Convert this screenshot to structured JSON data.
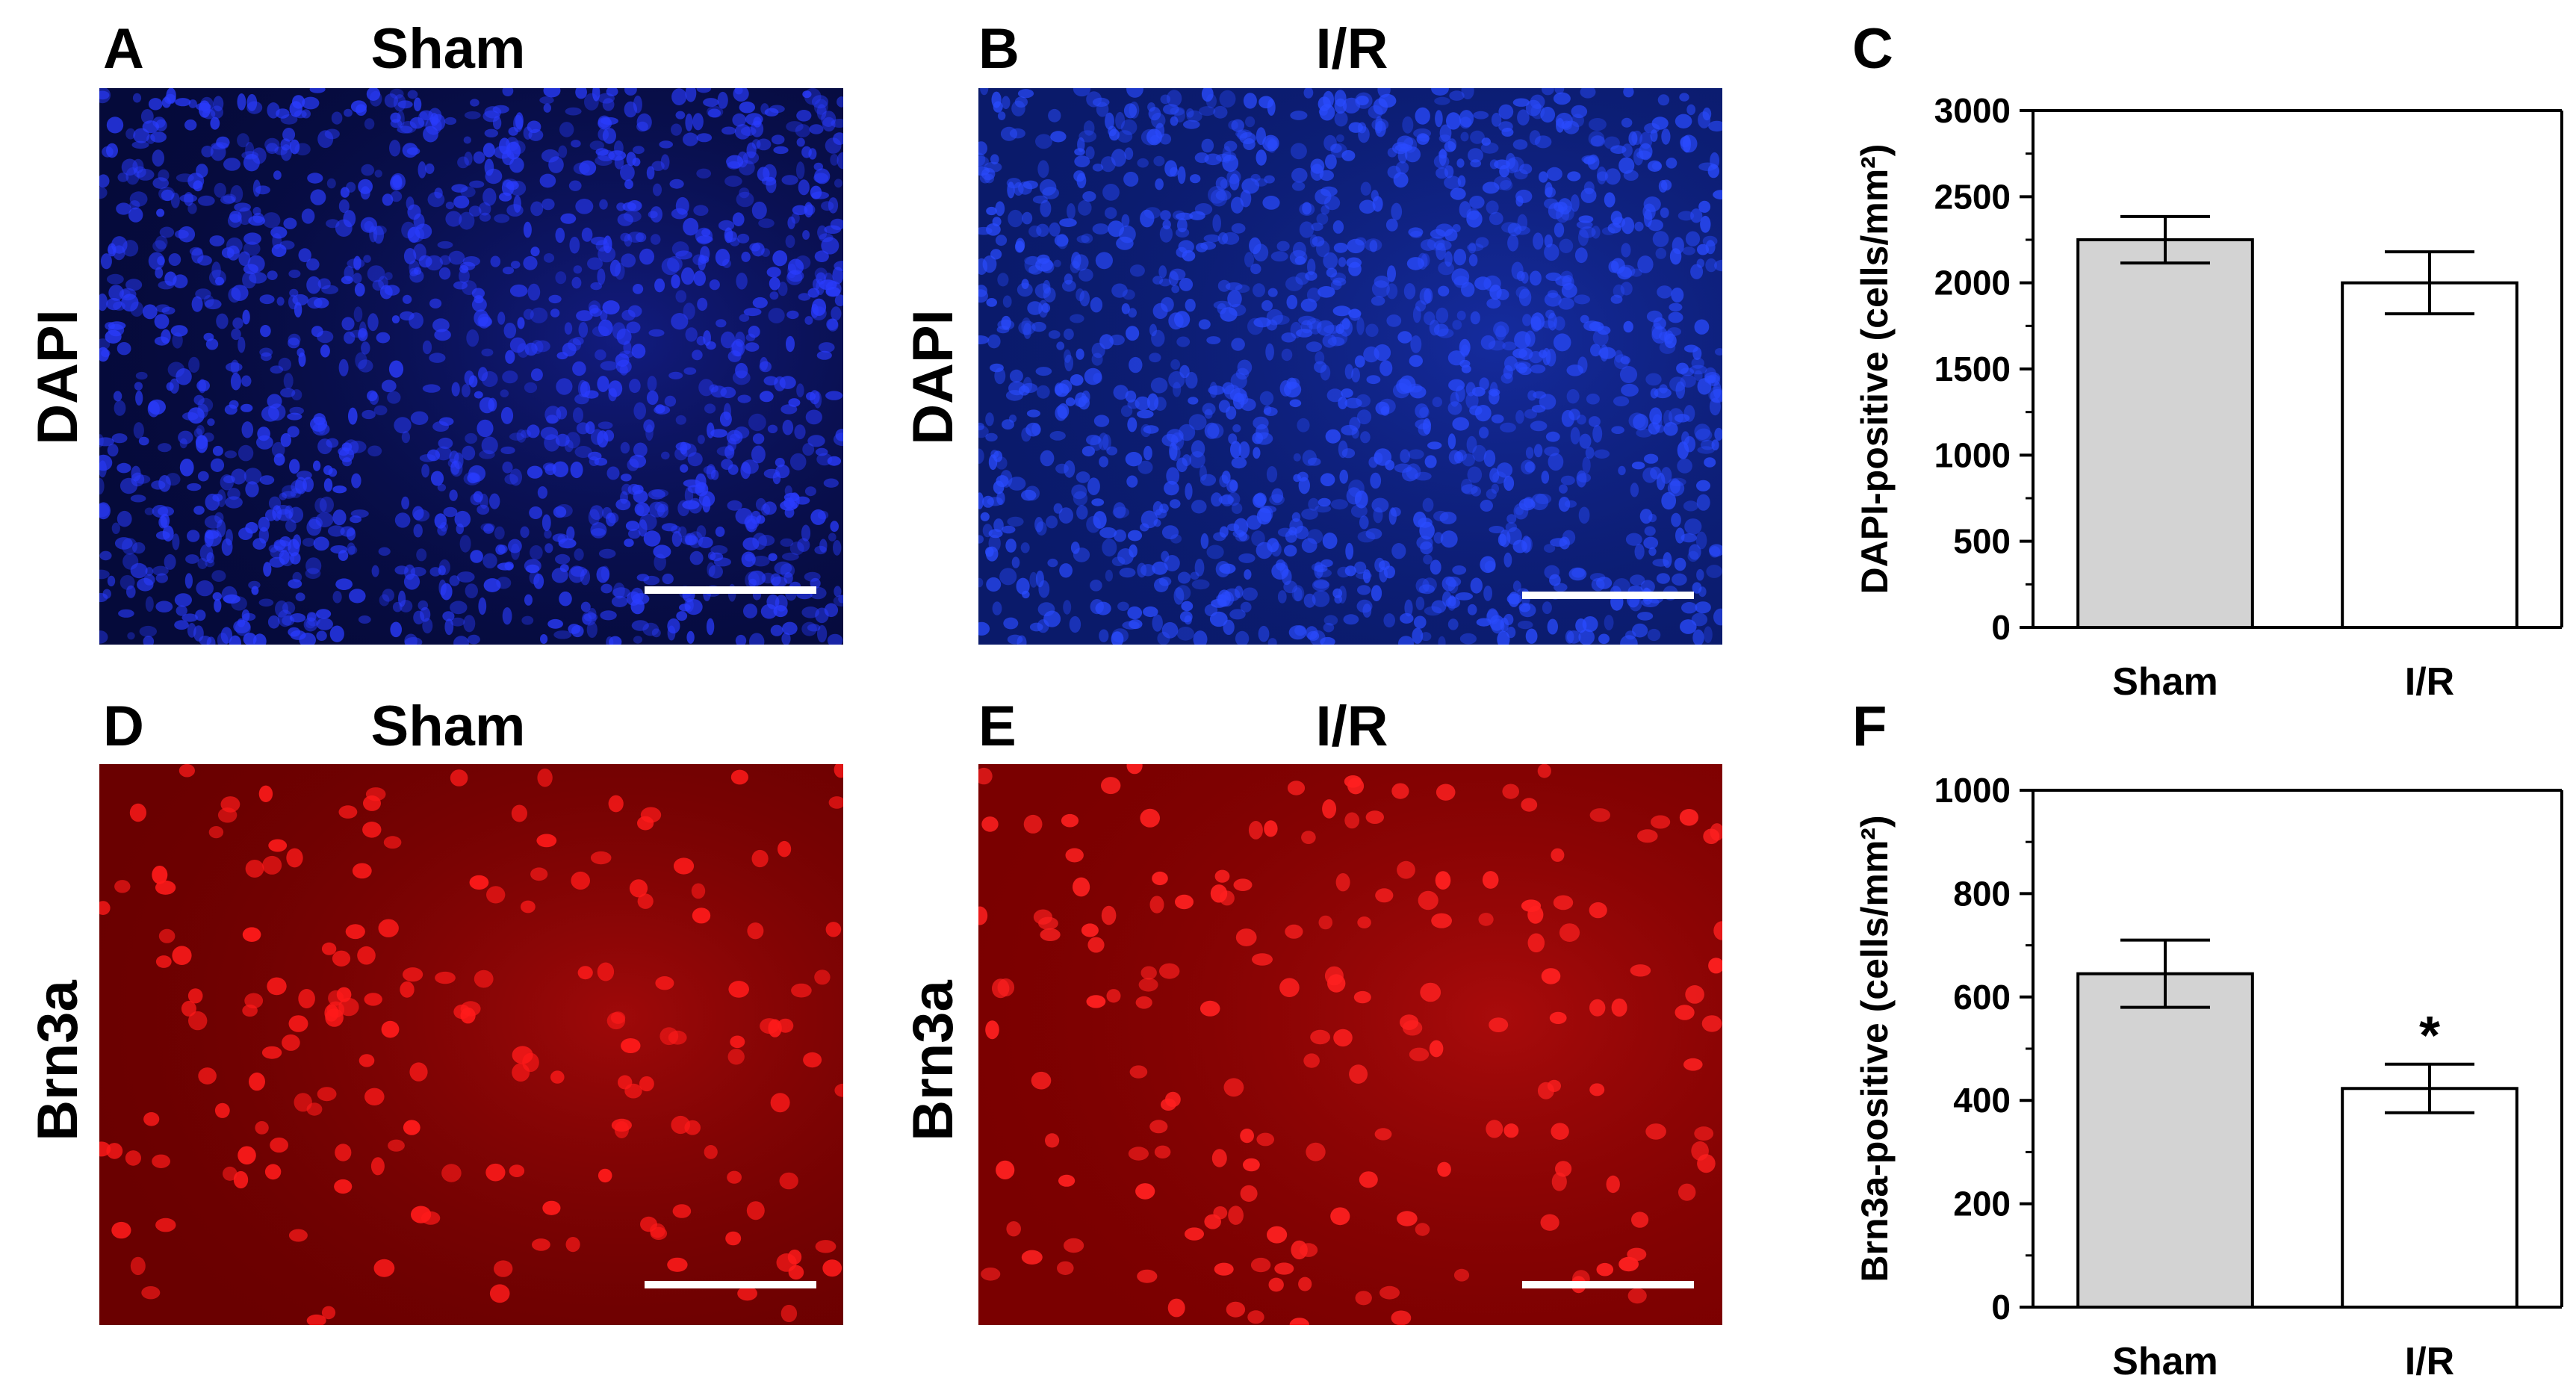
{
  "figure": {
    "panels": [
      {
        "letter": "A",
        "title": "Sham",
        "row_label": "DAPI",
        "stain_color": "#2a3cff",
        "bg_color": "#050a3a"
      },
      {
        "letter": "B",
        "title": "I/R",
        "row_label": "DAPI",
        "stain_color": "#2a4bff",
        "bg_color": "#0a1a6a"
      },
      {
        "letter": "D",
        "title": "Sham",
        "row_label": "Brn3a",
        "stain_color": "#ff1a1a",
        "bg_color": "#6a0000"
      },
      {
        "letter": "E",
        "title": "I/R",
        "row_label": "Brn3a",
        "stain_color": "#ff2020",
        "bg_color": "#7a0000"
      }
    ],
    "chart_letters": [
      "C",
      "F"
    ]
  },
  "chart_data": [
    {
      "type": "bar",
      "ylabel": "DAPI-positive (cells/mm²)",
      "categories": [
        "Sham",
        "I/R"
      ],
      "values": [
        2250,
        2000
      ],
      "errors": [
        135,
        180
      ],
      "significance": [
        "",
        ""
      ],
      "bar_colors": [
        "#d3d3d3",
        "#ffffff"
      ],
      "ylim": [
        0,
        3000
      ],
      "yticks": [
        0,
        500,
        1000,
        1500,
        2000,
        2500,
        3000
      ]
    },
    {
      "type": "bar",
      "ylabel": "Brn3a-positive (cells/mm²)",
      "categories": [
        "Sham",
        "I/R"
      ],
      "values": [
        645,
        423
      ],
      "errors": [
        65,
        47
      ],
      "significance": [
        "",
        "*"
      ],
      "bar_colors": [
        "#d3d3d3",
        "#ffffff"
      ],
      "ylim": [
        0,
        1000
      ],
      "yticks": [
        0,
        200,
        400,
        600,
        800,
        1000
      ]
    }
  ]
}
